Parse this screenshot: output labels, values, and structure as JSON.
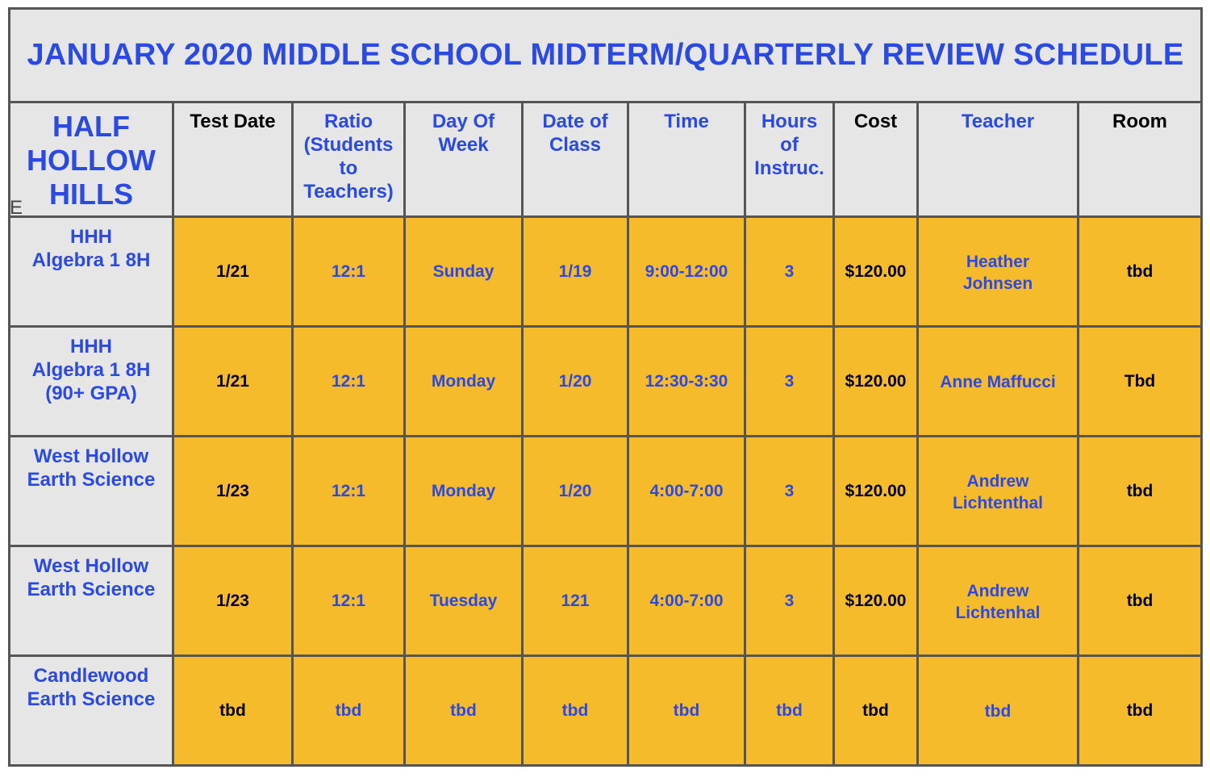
{
  "title": "JANUARY 2020 MIDDLE SCHOOL MIDTERM/QUARTERLY REVIEW SCHEDULE",
  "school_header": {
    "lines": [
      "HALF",
      "HOLLOW",
      "HILLS"
    ],
    "stray_char": "E"
  },
  "headers": {
    "test_date": [
      "Test Date"
    ],
    "ratio": [
      "Ratio",
      "(Students",
      "to",
      "Teachers)"
    ],
    "day_of_week": [
      "Day Of",
      "Week"
    ],
    "date_of_class": [
      "Date of",
      "Class"
    ],
    "time": [
      "Time"
    ],
    "hours": [
      "Hours",
      "of",
      "Instruc."
    ],
    "cost": [
      "Cost"
    ],
    "teacher": [
      "Teacher"
    ],
    "room": [
      "Room"
    ]
  },
  "rows": [
    {
      "course": [
        "HHH",
        "Algebra 1 8H"
      ],
      "test_date": "1/21",
      "ratio": "12:1",
      "day": "Sunday",
      "class_date": "1/19",
      "time": "9:00-12:00",
      "hours": "3",
      "cost": "$120.00",
      "teacher": [
        "Heather",
        "Johnsen"
      ],
      "room": "tbd"
    },
    {
      "course": [
        "HHH",
        "Algebra 1 8H",
        "(90+ GPA)"
      ],
      "test_date": "1/21",
      "ratio": "12:1",
      "day": "Monday",
      "class_date": "1/20",
      "time": "12:30-3:30",
      "hours": "3",
      "cost": "$120.00",
      "teacher": [
        "Anne Maffucci"
      ],
      "room": "Tbd"
    },
    {
      "course": [
        "West Hollow",
        "Earth Science"
      ],
      "test_date": "1/23",
      "ratio": "12:1",
      "day": "Monday",
      "class_date": "1/20",
      "time": "4:00-7:00",
      "hours": "3",
      "cost": "$120.00",
      "teacher": [
        "Andrew",
        "Lichtenthal"
      ],
      "room": "tbd"
    },
    {
      "course": [
        "West Hollow",
        "Earth Science"
      ],
      "test_date": "1/23",
      "ratio": "12:1",
      "day": "Tuesday",
      "class_date": "121",
      "time": "4:00-7:00",
      "hours": "3",
      "cost": "$120.00",
      "teacher": [
        "Andrew",
        "Lichtenhal"
      ],
      "room": "tbd"
    },
    {
      "course": [
        "Candlewood",
        "Earth Science"
      ],
      "test_date": "tbd",
      "ratio": "tbd",
      "day": "tbd",
      "class_date": "tbd",
      "time": "tbd",
      "hours": "tbd",
      "cost": "tbd",
      "teacher": [
        "tbd"
      ],
      "room": "tbd"
    }
  ],
  "colors": {
    "title_blue": "#2b49e6",
    "header_grey": "#e6e6e6",
    "row_orange": "#f6bb2b",
    "border_grey": "#555555"
  }
}
